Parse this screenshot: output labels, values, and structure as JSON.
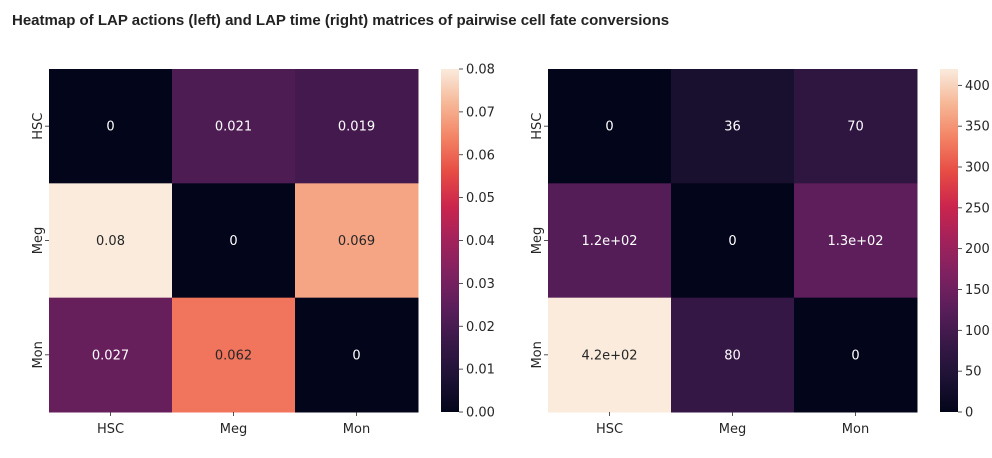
{
  "title": "Heatmap of LAP actions (left) and LAP time (right) matrices of pairwise cell fate conversions",
  "chart_data": [
    {
      "type": "heatmap",
      "rows": [
        "HSC",
        "Meg",
        "Mon"
      ],
      "columns": [
        "HSC",
        "Meg",
        "Mon"
      ],
      "values": [
        [
          0,
          0.021,
          0.019
        ],
        [
          0.08,
          0,
          0.069
        ],
        [
          0.027,
          0.062,
          0
        ]
      ],
      "annotations": [
        [
          "0",
          "0.021",
          "0.019"
        ],
        [
          "0.08",
          "0",
          "0.069"
        ],
        [
          "0.027",
          "0.062",
          "0"
        ]
      ],
      "color_range": [
        0,
        0.08
      ],
      "colorbar_ticks": [
        "0.00",
        "0.01",
        "0.02",
        "0.03",
        "0.04",
        "0.05",
        "0.06",
        "0.07",
        "0.08"
      ],
      "colormap": "rocket"
    },
    {
      "type": "heatmap",
      "rows": [
        "HSC",
        "Meg",
        "Mon"
      ],
      "columns": [
        "HSC",
        "Meg",
        "Mon"
      ],
      "values": [
        [
          0,
          36,
          70
        ],
        [
          120,
          0,
          130
        ],
        [
          420,
          80,
          0
        ]
      ],
      "annotations": [
        [
          "0",
          "36",
          "70"
        ],
        [
          "1.2e+02",
          "0",
          "1.3e+02"
        ],
        [
          "4.2e+02",
          "80",
          "0"
        ]
      ],
      "color_range": [
        0,
        420
      ],
      "colorbar_ticks": [
        "0",
        "50",
        "100",
        "150",
        "200",
        "250",
        "300",
        "350",
        "400"
      ],
      "colormap": "rocket"
    }
  ]
}
